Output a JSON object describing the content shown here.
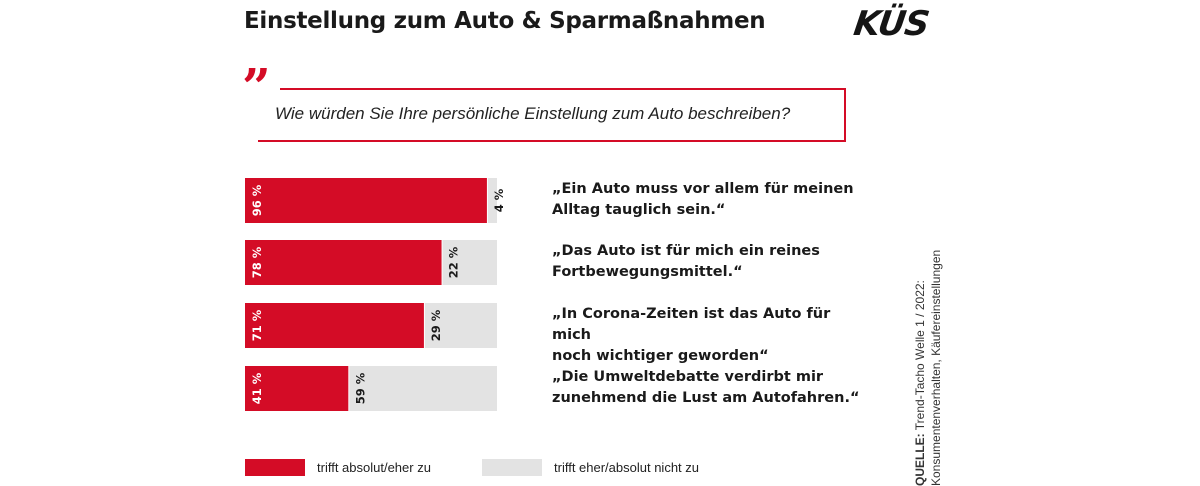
{
  "header": {
    "title": "Einstellung zum Auto & Sparmaßnahmen",
    "logo": "KÜS"
  },
  "question": {
    "quote_mark": "”",
    "text": "Wie würden Sie Ihre persönliche Einstellung zum Auto beschreiben?"
  },
  "colors": {
    "agree": "#d40c26",
    "disagree": "#e3e3e3",
    "accent": "#d40c26"
  },
  "chart_data": {
    "type": "bar",
    "orientation": "horizontal-stacked",
    "title": "Wie würden Sie Ihre persönliche Einstellung zum Auto beschreiben?",
    "xlim": [
      0,
      100
    ],
    "categories": [
      "„Ein Auto muss vor allem für meinen Alltag tauglich sein.“",
      "„Das Auto ist für mich ein reines Fortbewegungsmittel.“",
      "„In Corona-Zeiten ist das Auto für mich noch wichtiger geworden“",
      "„Die Umweltdebatte verdirbt mir zunehmend die Lust am Autofahren.“"
    ],
    "category_lines": [
      [
        "„Ein Auto muss vor allem für meinen",
        "Alltag tauglich sein.“"
      ],
      [
        "„Das Auto ist für mich ein reines",
        "Fortbewegungsmittel.“"
      ],
      [
        "„In Corona-Zeiten ist das Auto für mich",
        "noch wichtiger geworden“"
      ],
      [
        "„Die Umweltdebatte verdirbt mir",
        "zunehmend die Lust am Autofahren.“"
      ]
    ],
    "series": [
      {
        "name": "trifft absolut/eher zu",
        "values": [
          96,
          78,
          71,
          41
        ],
        "labels": [
          "96 %",
          "78 %",
          "71 %",
          "41 %"
        ]
      },
      {
        "name": "trifft eher/absolut nicht zu",
        "values": [
          4,
          22,
          29,
          59
        ],
        "labels": [
          "4 %",
          "22 %",
          "29 %",
          "59 %"
        ]
      }
    ],
    "legend": {
      "placement": "bottom",
      "entries": [
        "trifft absolut/eher zu",
        "trifft eher/absolut nicht zu"
      ]
    }
  },
  "source": {
    "label": "QUELLE:",
    "line1": "Trend-Tacho Welle 1 / 2022:",
    "line2": "Konsumentenverhalten, Käufereinstellungen"
  }
}
